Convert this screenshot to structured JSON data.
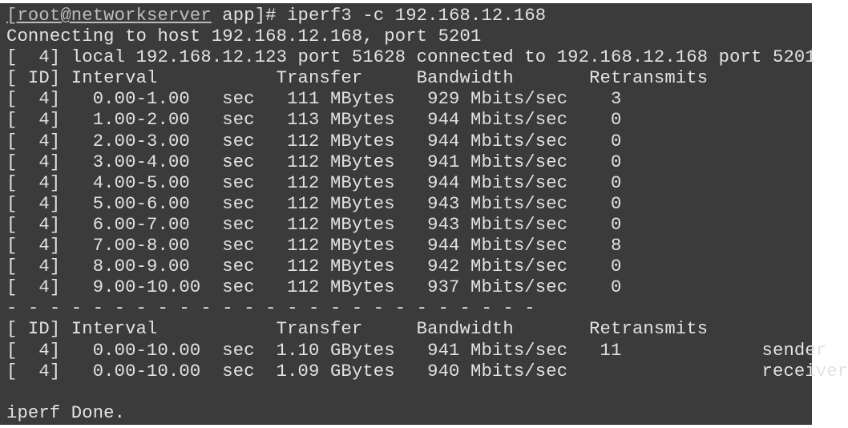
{
  "terminal": {
    "prompt": {
      "user_host": "[root@networkserver",
      "rest": " app]# iperf3 -c 192.168.12.168"
    },
    "lines": [
      "Connecting to host 192.168.12.168, port 5201",
      "[  4] local 192.168.12.123 port 51628 connected to 192.168.12.168 port 5201",
      "[ ID] Interval           Transfer     Bandwidth       Retransmits",
      "[  4]   0.00-1.00   sec   111 MBytes   929 Mbits/sec    3",
      "[  4]   1.00-2.00   sec   113 MBytes   944 Mbits/sec    0",
      "[  4]   2.00-3.00   sec   112 MBytes   944 Mbits/sec    0",
      "[  4]   3.00-4.00   sec   112 MBytes   941 Mbits/sec    0",
      "[  4]   4.00-5.00   sec   112 MBytes   944 Mbits/sec    0",
      "[  4]   5.00-6.00   sec   112 MBytes   943 Mbits/sec    0",
      "[  4]   6.00-7.00   sec   112 MBytes   943 Mbits/sec    0",
      "[  4]   7.00-8.00   sec   112 MBytes   944 Mbits/sec    8",
      "[  4]   8.00-9.00   sec   112 MBytes   942 Mbits/sec    0",
      "[  4]   9.00-10.00  sec   112 MBytes   937 Mbits/sec    0",
      "- - - - - - - - - - - - - - - - - - - - - - - - -",
      "[ ID] Interval           Transfer     Bandwidth       Retransmits",
      "[  4]   0.00-10.00  sec  1.10 GBytes   941 Mbits/sec   11             sender",
      "[  4]   0.00-10.00  sec  1.09 GBytes   940 Mbits/sec                  receiver",
      "",
      "iperf Done."
    ]
  }
}
